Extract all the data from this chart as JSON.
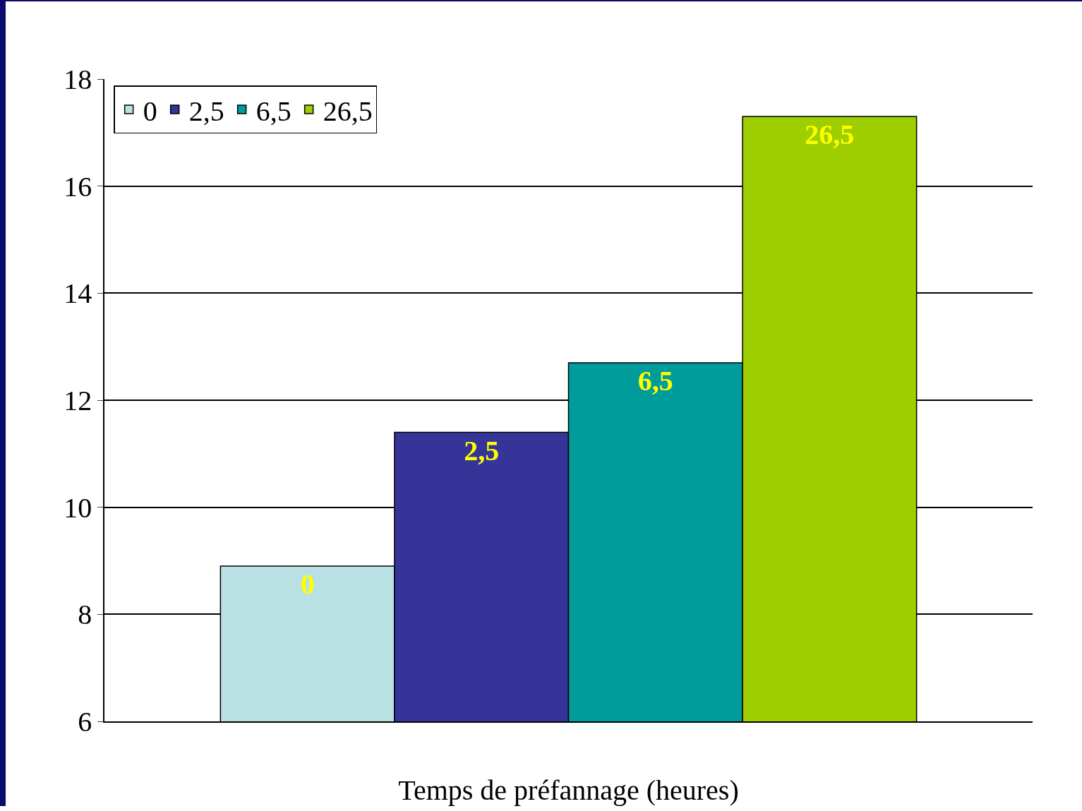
{
  "chart_data": {
    "type": "bar",
    "xlabel": "Temps de préfannage (heures)",
    "categories": [
      null
    ],
    "series": [
      {
        "name": "0",
        "color": "#b9e0e2",
        "values": [
          8.9
        ]
      },
      {
        "name": "2,5",
        "color": "#353498",
        "values": [
          11.4
        ]
      },
      {
        "name": "6,5",
        "color": "#009b9b",
        "values": [
          12.7
        ]
      },
      {
        "name": "26,5",
        "color": "#9ecd00",
        "values": [
          17.3
        ]
      }
    ],
    "ylim": [
      6,
      18
    ],
    "yticks": [
      6,
      8,
      10,
      12,
      14,
      16,
      18
    ],
    "grid": "y",
    "legend": "top left"
  }
}
